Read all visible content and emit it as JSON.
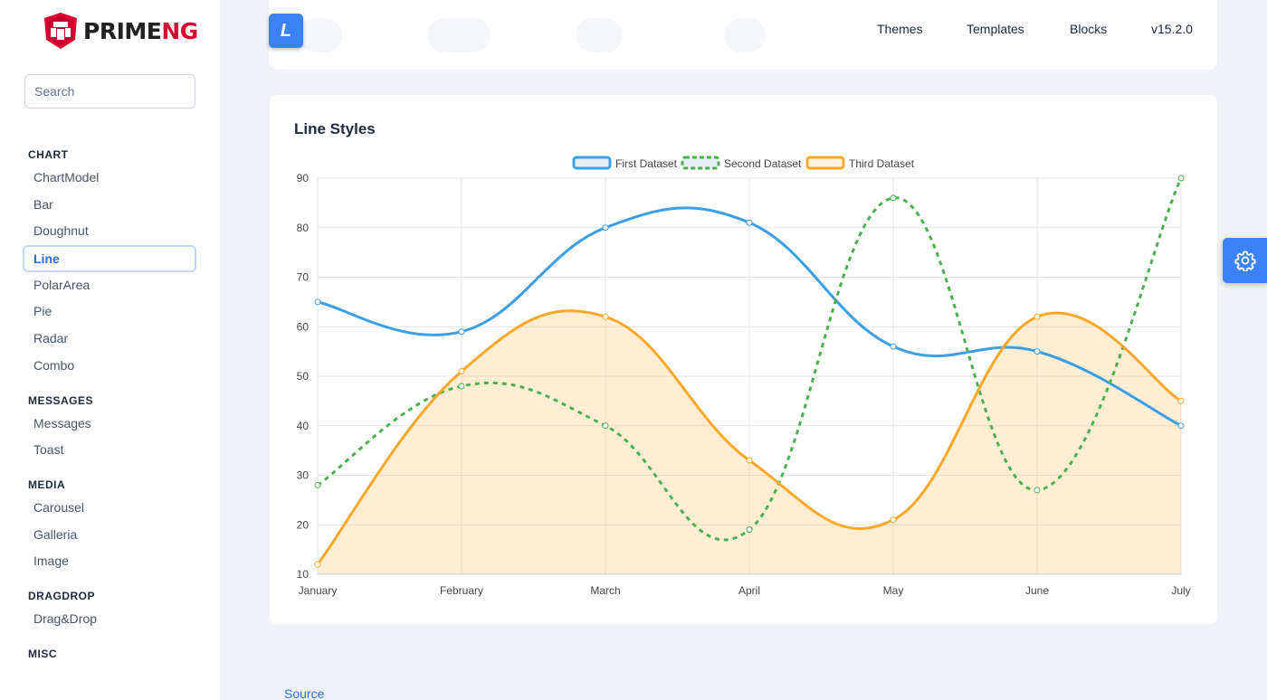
{
  "app": {
    "logo_prime": "PRIME",
    "logo_ng": "NG",
    "logo_button_letter": "L"
  },
  "search": {
    "placeholder": "Search"
  },
  "sidebar": {
    "sections": [
      {
        "header": "CHART",
        "items": [
          "ChartModel",
          "Bar",
          "Doughnut",
          "Line",
          "PolarArea",
          "Pie",
          "Radar",
          "Combo"
        ]
      },
      {
        "header": "MESSAGES",
        "items": [
          "Messages",
          "Toast"
        ]
      },
      {
        "header": "MEDIA",
        "items": [
          "Carousel",
          "Galleria",
          "Image"
        ]
      },
      {
        "header": "DRAGDROP",
        "items": [
          "Drag&Drop"
        ]
      },
      {
        "header": "MISC",
        "items": []
      }
    ],
    "active_item": "Line"
  },
  "topnav": {
    "themes": "Themes",
    "templates": "Templates",
    "blocks": "Blocks",
    "version": "v15.2.0"
  },
  "card": {
    "title": "Line Styles"
  },
  "footer": {
    "source_link": "Source"
  },
  "colors": {
    "accent": "#3b82f6",
    "first": "#3b9fe5",
    "second": "#4caf50",
    "third": "#ffa726",
    "third_fill": "rgba(255, 167, 38, 0.2)"
  },
  "chart_data": {
    "type": "line",
    "categories": [
      "January",
      "February",
      "March",
      "April",
      "May",
      "June",
      "July"
    ],
    "series": [
      {
        "name": "First Dataset",
        "values": [
          65,
          59,
          80,
          81,
          56,
          55,
          40
        ],
        "style": "solid",
        "fill": false
      },
      {
        "name": "Second Dataset",
        "values": [
          28,
          48,
          40,
          19,
          86,
          27,
          90
        ],
        "style": "dashed",
        "fill": false
      },
      {
        "name": "Third Dataset",
        "values": [
          12,
          51,
          62,
          33,
          21,
          62,
          45
        ],
        "style": "solid",
        "fill": true
      }
    ],
    "ylim": [
      10,
      90
    ],
    "yticks": [
      10,
      20,
      30,
      40,
      50,
      60,
      70,
      80,
      90
    ],
    "legend_position": "top",
    "grid": true,
    "smooth": true
  }
}
